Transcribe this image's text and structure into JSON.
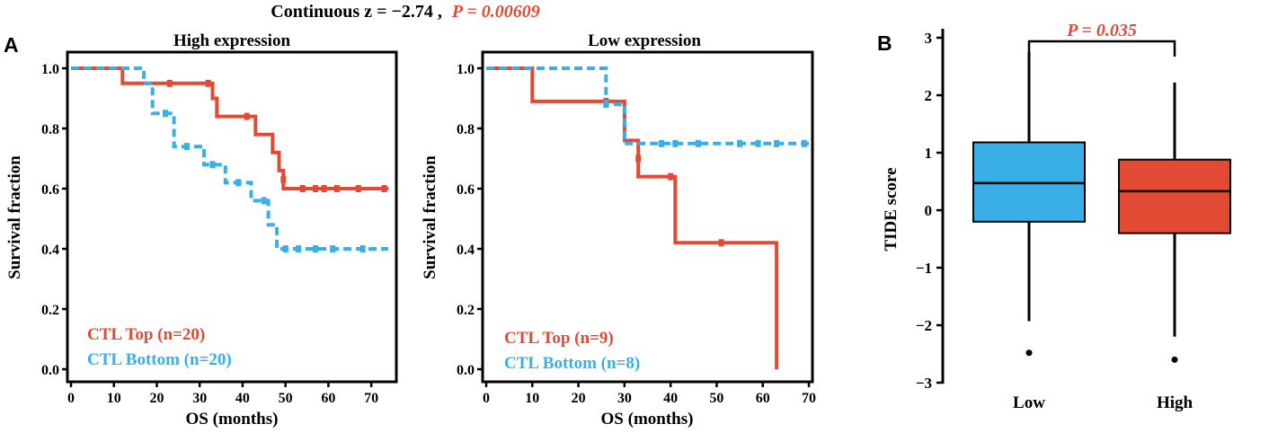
{
  "title": {
    "prefix": "Continuous z = −2.74 ,",
    "p_label": "P = 0.00609"
  },
  "panel_labels": {
    "a": "A",
    "b": "B"
  },
  "colors": {
    "top": "#e34a33",
    "bottom": "#3aaee6",
    "box_low": "#3aaee6",
    "box_high": "#e34a33",
    "axis": "#000000",
    "p_value": "#e34a33"
  },
  "chart_data": [
    {
      "id": "km_high",
      "type": "line",
      "subtype": "kaplan-meier",
      "title": "High expression",
      "xlabel": "OS (months)",
      "ylabel": "Survival fraction",
      "xlim": [
        0,
        75
      ],
      "ylim": [
        0,
        1.0
      ],
      "xticks": [
        0,
        10,
        20,
        30,
        40,
        50,
        60,
        70
      ],
      "yticks": [
        0.0,
        0.2,
        0.4,
        0.6,
        0.8,
        1.0
      ],
      "ytick_labels": [
        "0.0",
        "0.2",
        "0.4",
        "0.6",
        "0.8",
        "1.0"
      ],
      "legend_placement": "bottom-left",
      "series": [
        {
          "name": "CTL Top (n=20)",
          "style": "solid",
          "color_key": "top",
          "steps": [
            [
              0,
              1.0
            ],
            [
              12,
              0.95
            ],
            [
              33,
              0.9
            ],
            [
              34,
              0.84
            ],
            [
              43,
              0.78
            ],
            [
              47,
              0.72
            ],
            [
              48.5,
              0.66
            ],
            [
              49.5,
              0.6
            ],
            [
              74,
              0.6
            ]
          ],
          "censored": [
            [
              23,
              0.95
            ],
            [
              32,
              0.95
            ],
            [
              41,
              0.84
            ],
            [
              49.5,
              0.63
            ],
            [
              54,
              0.6
            ],
            [
              57,
              0.6
            ],
            [
              59,
              0.6
            ],
            [
              62,
              0.6
            ],
            [
              67,
              0.6
            ],
            [
              73,
              0.6
            ]
          ]
        },
        {
          "name": "CTL Bottom (n=20)",
          "style": "dashed",
          "color_key": "bottom",
          "steps": [
            [
              0,
              1.0
            ],
            [
              17,
              0.95
            ],
            [
              19,
              0.85
            ],
            [
              24,
              0.74
            ],
            [
              31,
              0.68
            ],
            [
              36,
              0.62
            ],
            [
              42,
              0.56
            ],
            [
              46,
              0.48
            ],
            [
              48,
              0.4
            ],
            [
              74,
              0.4
            ]
          ],
          "censored": [
            [
              22,
              0.85
            ],
            [
              27,
              0.74
            ],
            [
              33,
              0.68
            ],
            [
              39,
              0.62
            ],
            [
              45,
              0.56
            ],
            [
              50,
              0.4
            ],
            [
              53,
              0.4
            ],
            [
              57,
              0.4
            ],
            [
              61,
              0.4
            ],
            [
              68,
              0.4
            ]
          ]
        }
      ]
    },
    {
      "id": "km_low",
      "type": "line",
      "subtype": "kaplan-meier",
      "title": "Low expression",
      "xlabel": "OS (months)",
      "ylabel": "Survival fraction",
      "xlim": [
        0,
        70
      ],
      "ylim": [
        0,
        1.0
      ],
      "xticks": [
        0,
        10,
        20,
        30,
        40,
        50,
        60,
        70
      ],
      "yticks": [
        0.0,
        0.2,
        0.4,
        0.6,
        0.8,
        1.0
      ],
      "ytick_labels": [
        "0.0",
        "0.2",
        "0.4",
        "0.6",
        "0.8",
        "1.0"
      ],
      "legend_placement": "bottom-left",
      "series": [
        {
          "name": "CTL Top (n=9)",
          "style": "solid",
          "color_key": "top",
          "steps": [
            [
              0,
              1.0
            ],
            [
              10,
              0.89
            ],
            [
              30,
              0.76
            ],
            [
              33,
              0.64
            ],
            [
              41,
              0.42
            ],
            [
              63,
              0.0
            ]
          ],
          "censored": [
            [
              26,
              0.89
            ],
            [
              33,
              0.7
            ],
            [
              40,
              0.64
            ],
            [
              51,
              0.42
            ]
          ]
        },
        {
          "name": "CTL Bottom (n=8)",
          "style": "dashed",
          "color_key": "bottom",
          "steps": [
            [
              0,
              1.0
            ],
            [
              26,
              0.88
            ],
            [
              30,
              0.75
            ],
            [
              70,
              0.75
            ]
          ],
          "censored": [
            [
              26,
              0.88
            ],
            [
              38,
              0.75
            ],
            [
              41,
              0.75
            ],
            [
              46,
              0.75
            ],
            [
              55,
              0.75
            ],
            [
              59,
              0.75
            ],
            [
              63,
              0.75
            ],
            [
              69,
              0.75
            ]
          ]
        }
      ]
    },
    {
      "id": "box_tide",
      "type": "box",
      "categories": [
        "Low",
        "High"
      ],
      "ylabel": "TIDE score",
      "xlabel": "",
      "ylim": [
        -3,
        3.1
      ],
      "yticks": [
        -3,
        -2,
        -1,
        0,
        1,
        2,
        3
      ],
      "ytick_labels": [
        "−3",
        "−2",
        "−1",
        "0",
        "1",
        "2",
        "3"
      ],
      "boxes": [
        {
          "name": "Low",
          "whisker_low": -1.93,
          "q1": -0.2,
          "median": 0.47,
          "q3": 1.18,
          "whisker_high": 2.75,
          "outliers": [
            -2.48
          ],
          "color_key": "box_low"
        },
        {
          "name": "High",
          "whisker_low": -2.2,
          "q1": -0.4,
          "median": 0.33,
          "q3": 0.88,
          "whisker_high": 2.22,
          "outliers": [
            -2.6
          ],
          "color_key": "box_high"
        }
      ],
      "annotation": {
        "text": "P = 0.035",
        "between": [
          "Low",
          "High"
        ],
        "y": 2.9
      }
    }
  ]
}
